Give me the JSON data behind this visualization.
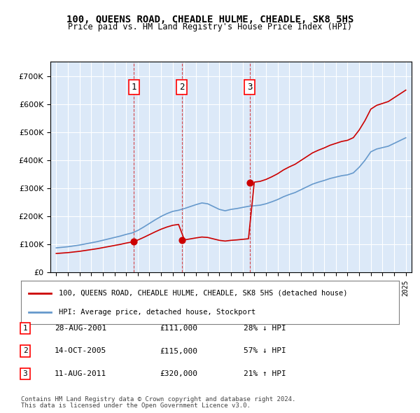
{
  "title": "100, QUEENS ROAD, CHEADLE HULME, CHEADLE, SK8 5HS",
  "subtitle": "Price paid vs. HM Land Registry's House Price Index (HPI)",
  "legend_label_red": "100, QUEENS ROAD, CHEADLE HULME, CHEADLE, SK8 5HS (detached house)",
  "legend_label_blue": "HPI: Average price, detached house, Stockport",
  "footer1": "Contains HM Land Registry data © Crown copyright and database right 2024.",
  "footer2": "This data is licensed under the Open Government Licence v3.0.",
  "transactions": [
    {
      "num": 1,
      "date": "28-AUG-2001",
      "price": "£111,000",
      "hpi": "28% ↓ HPI",
      "x": 2001.65
    },
    {
      "num": 2,
      "date": "14-OCT-2005",
      "price": "£115,000",
      "hpi": "57% ↓ HPI",
      "x": 2005.78
    },
    {
      "num": 3,
      "date": "11-AUG-2011",
      "price": "£320,000",
      "hpi": "21% ↑ HPI",
      "x": 2011.61
    }
  ],
  "background_color": "#dce9f8",
  "plot_bg": "#dce9f8",
  "red_color": "#cc0000",
  "blue_color": "#6699cc",
  "ylim": [
    0,
    750000
  ],
  "xlim_start": 1994.5,
  "xlim_end": 2025.5
}
